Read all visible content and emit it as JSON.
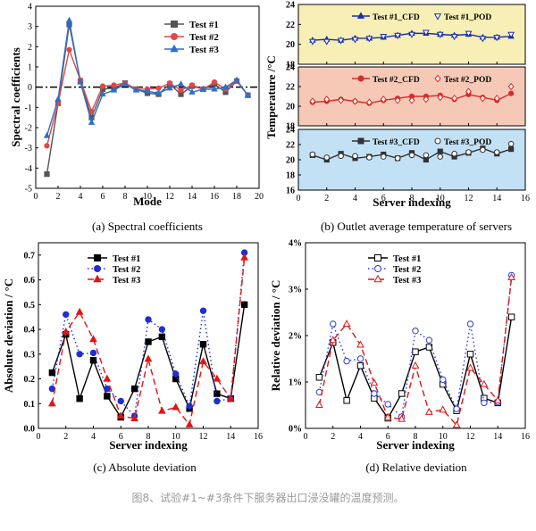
{
  "caption": "图8、试验#1~#3条件下服务器出口浸没罐的温度预测。",
  "chart_data": [
    {
      "id": "a",
      "type": "line",
      "panel_label": "(a) Spectral coefficients",
      "xlabel": "Mode",
      "ylabel": "Spectral coefficients",
      "xlim": [
        0,
        20
      ],
      "ylim": [
        -5,
        4
      ],
      "xticks": [
        0,
        2,
        4,
        6,
        8,
        10,
        12,
        14,
        16,
        18,
        20
      ],
      "yticks": [
        -5,
        -4,
        -3,
        -2,
        -1,
        0,
        1,
        2,
        3,
        4
      ],
      "legend_position": "top-right",
      "reference_line_y": 0,
      "x": [
        1,
        2,
        3,
        4,
        5,
        6,
        7,
        8,
        9,
        10,
        11,
        12,
        13,
        14,
        15,
        16,
        17,
        18,
        19
      ],
      "series": [
        {
          "name": "Test #1",
          "color": "#555555",
          "marker": "square",
          "values": [
            -4.3,
            -0.8,
            3.1,
            0.3,
            -1.5,
            -0.1,
            -0.05,
            0.2,
            -0.1,
            -0.3,
            -0.35,
            0.15,
            -0.35,
            0.05,
            -0.1,
            0.15,
            -0.25,
            0.3,
            -0.4
          ]
        },
        {
          "name": "Test #2",
          "color": "#e04848",
          "marker": "circle",
          "values": [
            -2.9,
            -0.8,
            1.85,
            0.35,
            -1.2,
            0.05,
            0.1,
            0.2,
            -0.1,
            -0.1,
            -0.05,
            0.2,
            -0.15,
            0.1,
            -0.1,
            0.25,
            -0.1,
            0.3,
            -0.4
          ]
        },
        {
          "name": "Test #3",
          "color": "#2f6ec9",
          "marker": "triangle",
          "values": [
            -2.4,
            -0.6,
            3.3,
            0.25,
            -1.75,
            -0.35,
            -0.15,
            0.15,
            -0.15,
            -0.2,
            -0.3,
            -0.05,
            0.15,
            -0.25,
            -0.1,
            -0.1,
            0.0,
            0.35,
            -0.4
          ]
        }
      ]
    },
    {
      "id": "b",
      "type": "line",
      "panel_label": "(b) Outlet average temperature of servers",
      "xlabel": "Server indexing",
      "ylabel": "Temperature /°C",
      "xlim": [
        0,
        16
      ],
      "xticks": [
        0,
        2,
        4,
        6,
        8,
        10,
        12,
        14,
        16
      ],
      "x": [
        1,
        2,
        3,
        4,
        5,
        6,
        7,
        8,
        9,
        10,
        11,
        12,
        13,
        14,
        15
      ],
      "subpanels": [
        {
          "ylim": [
            18,
            24
          ],
          "yticks": [
            18,
            20,
            22,
            24
          ],
          "background": "#f7efb6",
          "color": "#1b2fa8",
          "cfd_marker": "triangle",
          "pod_marker": "triangle-down-open",
          "legend": [
            "Test #1_CFD",
            "Test #1_POD"
          ],
          "cfd": [
            20.4,
            20.5,
            20.4,
            20.6,
            20.6,
            20.7,
            20.9,
            21.1,
            21.1,
            21.0,
            20.9,
            21.0,
            20.7,
            20.7,
            20.8
          ],
          "pod": [
            20.3,
            20.3,
            20.4,
            20.5,
            20.6,
            20.8,
            20.9,
            21.0,
            21.2,
            21.0,
            20.8,
            21.1,
            20.6,
            20.7,
            21.0
          ]
        },
        {
          "ylim": [
            18,
            24
          ],
          "yticks": [
            18,
            20,
            22,
            24
          ],
          "background": "#f6c9b7",
          "color": "#d92b2b",
          "cfd_marker": "circle",
          "pod_marker": "diamond-open",
          "legend": [
            "Test #2_CFD",
            "Test #2_POD"
          ],
          "cfd": [
            20.4,
            20.5,
            20.7,
            20.5,
            20.3,
            20.6,
            20.8,
            21.0,
            21.0,
            21.1,
            20.7,
            21.2,
            20.9,
            20.6,
            21.3
          ],
          "pod": [
            20.5,
            20.7,
            20.6,
            20.5,
            20.4,
            20.7,
            20.6,
            20.6,
            20.7,
            20.9,
            20.8,
            21.5,
            20.8,
            20.8,
            22.0
          ]
        },
        {
          "ylim": [
            16,
            24
          ],
          "yticks": [
            16,
            18,
            20,
            22,
            24
          ],
          "background": "#c3e1f4",
          "color": "#333333",
          "cfd_marker": "square",
          "pod_marker": "circle-open",
          "legend": [
            "Test #3_CFD",
            "Test #3_POD"
          ],
          "cfd": [
            20.6,
            20.0,
            20.8,
            20.2,
            20.4,
            20.7,
            20.2,
            20.9,
            20.0,
            21.1,
            20.4,
            20.9,
            21.5,
            20.8,
            21.4
          ],
          "pod": [
            20.7,
            20.3,
            20.5,
            20.5,
            20.3,
            20.4,
            20.2,
            20.6,
            20.6,
            20.4,
            20.8,
            21.0,
            21.3,
            21.0,
            22.1
          ]
        }
      ]
    },
    {
      "id": "c",
      "type": "line",
      "panel_label": "(c) Absolute deviation",
      "xlabel": "Server indexing",
      "ylabel": "Absolute deviation / °C",
      "xlim": [
        0,
        16
      ],
      "ylim": [
        0,
        0.75
      ],
      "xticks": [
        0,
        2,
        4,
        6,
        8,
        10,
        12,
        14,
        16
      ],
      "yticks": [
        0.0,
        0.1,
        0.2,
        0.3,
        0.4,
        0.5,
        0.6,
        0.7
      ],
      "legend_position": "top-left",
      "x": [
        1,
        2,
        3,
        4,
        5,
        6,
        7,
        8,
        9,
        10,
        11,
        12,
        13,
        14,
        15
      ],
      "series": [
        {
          "name": "Test #1",
          "color": "#000000",
          "marker": "square",
          "dash": "solid",
          "values": [
            0.225,
            0.38,
            0.12,
            0.275,
            0.13,
            0.045,
            0.16,
            0.35,
            0.37,
            0.2,
            0.08,
            0.34,
            0.14,
            0.12,
            0.5
          ]
        },
        {
          "name": "Test #2",
          "color": "#1f2fd0",
          "marker": "circle",
          "dash": "dotted",
          "values": [
            0.16,
            0.46,
            0.3,
            0.305,
            0.16,
            0.11,
            0.05,
            0.44,
            0.4,
            0.22,
            0.09,
            0.475,
            0.11,
            0.12,
            0.71
          ]
        },
        {
          "name": "Test #3",
          "color": "#e01515",
          "marker": "triangle",
          "dash": "dashed",
          "values": [
            0.1,
            0.39,
            0.47,
            0.36,
            0.2,
            0.05,
            0.04,
            0.28,
            0.07,
            0.085,
            0.015,
            0.27,
            0.2,
            0.12,
            0.69
          ]
        }
      ]
    },
    {
      "id": "d",
      "type": "line",
      "panel_label": "(d) Relative deviation",
      "xlabel": "Server indexing",
      "ylabel": "Relative deviation / °C",
      "xlim": [
        0,
        16
      ],
      "ylim": [
        0,
        4
      ],
      "xticks": [
        0,
        2,
        4,
        6,
        8,
        10,
        12,
        14,
        16
      ],
      "yticks": [
        0,
        1,
        2,
        3,
        4
      ],
      "ytick_labels": [
        "0%",
        "1%",
        "2%",
        "3%",
        "4%"
      ],
      "legend_position": "top-left",
      "x": [
        1,
        2,
        3,
        4,
        5,
        6,
        7,
        8,
        9,
        10,
        11,
        12,
        13,
        14,
        15
      ],
      "series": [
        {
          "name": "Test #1",
          "color": "#000000",
          "marker": "square-open",
          "dash": "solid",
          "values": [
            1.1,
            1.85,
            0.6,
            1.35,
            0.65,
            0.22,
            0.75,
            1.65,
            1.75,
            0.95,
            0.38,
            1.6,
            0.65,
            0.55,
            2.4
          ]
        },
        {
          "name": "Test #2",
          "color": "#2a3bd8",
          "marker": "circle-open",
          "dash": "dotted",
          "values": [
            0.78,
            2.25,
            1.45,
            1.5,
            0.75,
            0.52,
            0.25,
            2.1,
            1.9,
            1.05,
            0.42,
            2.25,
            0.55,
            0.57,
            3.3
          ]
        },
        {
          "name": "Test #3",
          "color": "#e01515",
          "marker": "triangle-open",
          "dash": "dashed",
          "values": [
            0.5,
            1.9,
            2.25,
            1.8,
            0.98,
            0.24,
            0.2,
            1.35,
            0.35,
            0.4,
            0.07,
            1.3,
            0.95,
            0.6,
            3.25
          ]
        }
      ]
    }
  ]
}
